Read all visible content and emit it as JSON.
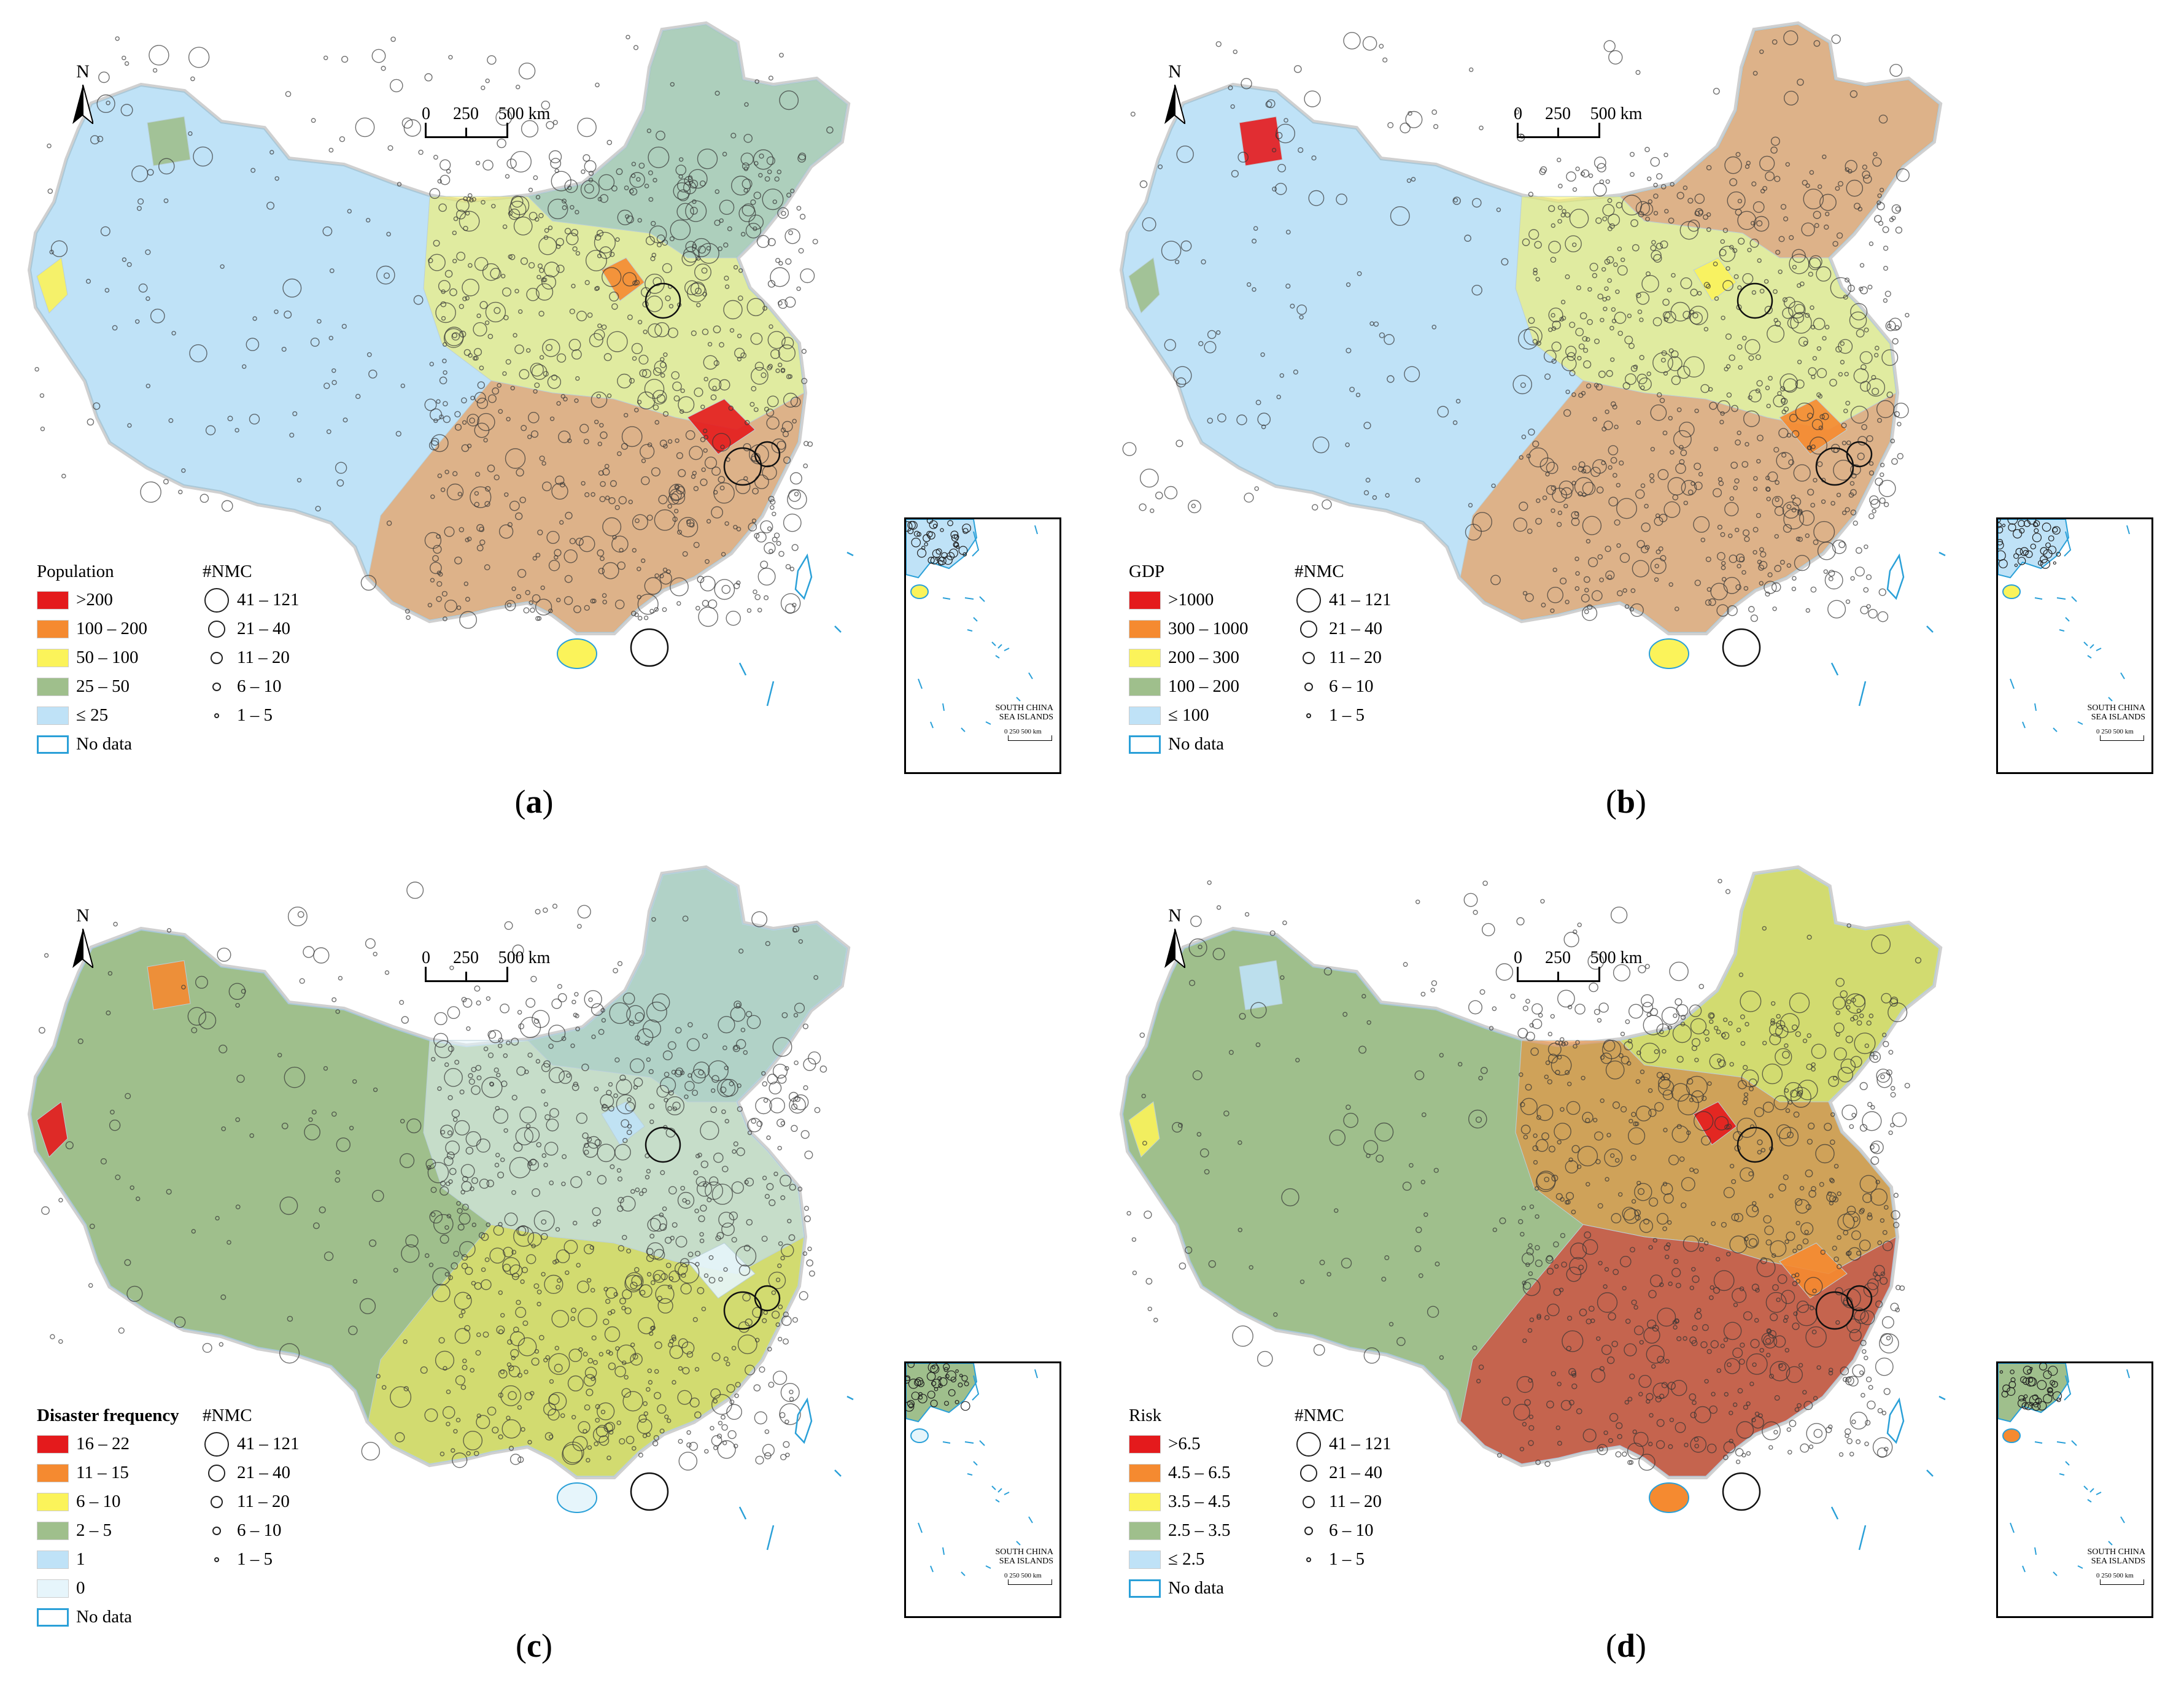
{
  "common": {
    "north_label": "N",
    "scale_ticks": [
      "0",
      "250",
      "500 km"
    ],
    "nmc_title": "#NMC",
    "nmc_classes": [
      "41 – 121",
      "21 – 40",
      "11 – 20",
      "6 – 10",
      "1 – 5"
    ],
    "inset_label_line1": "SOUTH CHINA",
    "inset_label_line2": "SEA ISLANDS",
    "inset_scale": "0   250   500 km",
    "colors": {
      "red": "#e41a1c",
      "orange": "#f58a30",
      "yellow": "#fbf35a",
      "green": "#9fbf8c",
      "lightblue": "#bfe2f7",
      "paleblue": "#e6f5fb",
      "nodata": "#2aa0d8"
    }
  },
  "panels": [
    {
      "caption": "a",
      "legend_title": "Population",
      "legend_title_bold": false,
      "classes": [
        {
          "label": ">200",
          "color": "#e41a1c"
        },
        {
          "label": "100 – 200",
          "color": "#f58a30"
        },
        {
          "label": "50 – 100",
          "color": "#fbf35a"
        },
        {
          "label": "25 – 50",
          "color": "#9fbf8c"
        },
        {
          "label": "≤ 25",
          "color": "#bfe2f7"
        },
        {
          "label": "No data",
          "color": "#ffffff",
          "outline": true
        }
      ]
    },
    {
      "caption": "b",
      "legend_title": "GDP",
      "legend_title_bold": false,
      "classes": [
        {
          "label": ">1000",
          "color": "#e41a1c"
        },
        {
          "label": "300 – 1000",
          "color": "#f58a30"
        },
        {
          "label": "200 – 300",
          "color": "#fbf35a"
        },
        {
          "label": "100 – 200",
          "color": "#9fbf8c"
        },
        {
          "label": "≤ 100",
          "color": "#bfe2f7"
        },
        {
          "label": "No data",
          "color": "#ffffff",
          "outline": true
        }
      ]
    },
    {
      "caption": "c",
      "legend_title": "Disaster frequency",
      "legend_title_bold": true,
      "classes": [
        {
          "label": "16 – 22",
          "color": "#e41a1c"
        },
        {
          "label": "11 – 15",
          "color": "#f58a30"
        },
        {
          "label": "6 – 10",
          "color": "#fbf35a"
        },
        {
          "label": "2 – 5",
          "color": "#9fbf8c"
        },
        {
          "label": "1",
          "color": "#bfe2f7"
        },
        {
          "label": "0",
          "color": "#e6f5fb"
        },
        {
          "label": "No data",
          "color": "#ffffff",
          "outline": true
        }
      ]
    },
    {
      "caption": "d",
      "legend_title": "Risk",
      "legend_title_bold": false,
      "classes": [
        {
          "label": ">6.5",
          "color": "#e41a1c"
        },
        {
          "label": "4.5 – 6.5",
          "color": "#f58a30"
        },
        {
          "label": "3.5 – 4.5",
          "color": "#fbf35a"
        },
        {
          "label": "2.5 – 3.5",
          "color": "#9fbf8c"
        },
        {
          "label": "≤ 2.5",
          "color": "#bfe2f7"
        },
        {
          "label": "No data",
          "color": "#ffffff",
          "outline": true
        }
      ]
    }
  ]
}
